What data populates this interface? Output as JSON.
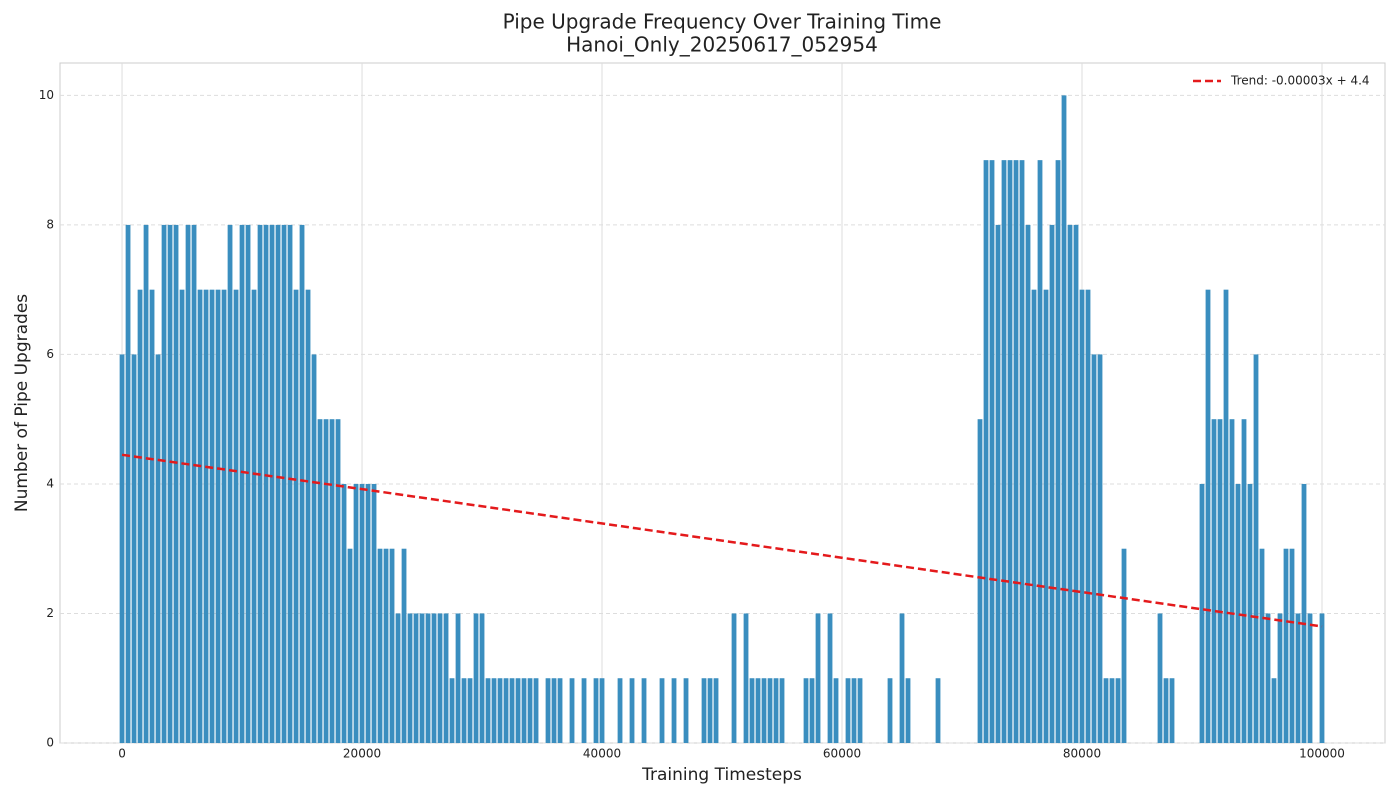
{
  "chart_data": {
    "type": "bar",
    "title": "Pipe Upgrade Frequency Over Training Time",
    "subtitle": "Hanoi_Only_20250617_052954",
    "x_label": "Training Timesteps",
    "y_label": "Number of Pipe Upgrades",
    "color": "#3a8ebf",
    "x": [
      0,
      500,
      1000,
      1500,
      2000,
      2500,
      3000,
      3500,
      4000,
      4500,
      5000,
      5500,
      6000,
      6500,
      7000,
      7500,
      8000,
      8500,
      9000,
      9500,
      10000,
      10500,
      11000,
      11500,
      12000,
      12500,
      13000,
      13500,
      14000,
      14500,
      15000,
      15500,
      16000,
      16500,
      17000,
      17500,
      18000,
      18500,
      19000,
      19500,
      20000,
      20500,
      21000,
      21500,
      22000,
      22500,
      23000,
      23500,
      24000,
      24500,
      25000,
      25500,
      26000,
      26500,
      27000,
      27500,
      28000,
      28500,
      29000,
      29500,
      30000,
      30500,
      31000,
      31500,
      32000,
      32500,
      33000,
      33500,
      34000,
      34500,
      35000,
      35500,
      36000,
      36500,
      37000,
      37500,
      38000,
      38500,
      39000,
      39500,
      40000,
      40500,
      41000,
      41500,
      42000,
      42500,
      43000,
      43500,
      44000,
      44500,
      45000,
      45500,
      46000,
      46500,
      47000,
      47500,
      48000,
      48500,
      49000,
      49500,
      50000,
      50500,
      51000,
      51500,
      52000,
      52500,
      53000,
      53500,
      54000,
      54500,
      55000,
      55500,
      56000,
      56500,
      57000,
      57500,
      58000,
      58500,
      59000,
      59500,
      60000,
      60500,
      61000,
      61500,
      62000,
      62500,
      63000,
      63500,
      64000,
      64500,
      65000,
      65500,
      66000,
      66500,
      67000,
      67500,
      68000,
      68500,
      69000,
      69500,
      70000,
      70500,
      71000,
      71500,
      72000,
      72500,
      73000,
      73500,
      74000,
      74500,
      75000,
      75500,
      76000,
      76500,
      77000,
      77500,
      78000,
      78500,
      79000,
      79500,
      80000,
      80500,
      81000,
      81500,
      82000,
      82500,
      83000,
      83500,
      84000,
      84500,
      85000,
      85500,
      86000,
      86500,
      87000,
      87500,
      88000,
      88500,
      89000,
      89500,
      90000,
      90500,
      91000,
      91500,
      92000,
      92500,
      93000,
      93500,
      94000,
      94500,
      95000,
      95500,
      96000,
      96500,
      97000,
      97500,
      98000,
      98500,
      99000,
      99500,
      100000
    ],
    "values": [
      6,
      8,
      6,
      7,
      8,
      7,
      6,
      8,
      8,
      8,
      7,
      8,
      8,
      7,
      7,
      7,
      7,
      7,
      8,
      7,
      8,
      8,
      7,
      8,
      8,
      8,
      8,
      8,
      8,
      7,
      8,
      7,
      6,
      5,
      5,
      5,
      5,
      4,
      3,
      4,
      4,
      4,
      4,
      3,
      3,
      3,
      2,
      3,
      2,
      2,
      2,
      2,
      2,
      2,
      2,
      1,
      2,
      1,
      1,
      2,
      2,
      1,
      1,
      1,
      1,
      1,
      1,
      1,
      1,
      1,
      0,
      1,
      1,
      1,
      0,
      1,
      0,
      1,
      0,
      1,
      1,
      0,
      0,
      1,
      0,
      1,
      0,
      1,
      0,
      0,
      1,
      0,
      1,
      0,
      1,
      0,
      0,
      1,
      1,
      1,
      0,
      0,
      2,
      0,
      2,
      1,
      1,
      1,
      1,
      1,
      1,
      0,
      0,
      0,
      1,
      1,
      2,
      0,
      2,
      1,
      0,
      1,
      1,
      1,
      0,
      0,
      0,
      0,
      1,
      0,
      2,
      1,
      0,
      0,
      0,
      0,
      1,
      0,
      0,
      0,
      0,
      0,
      0,
      5,
      9,
      9,
      8,
      9,
      9,
      9,
      9,
      8,
      7,
      9,
      7,
      8,
      9,
      10,
      8,
      8,
      7,
      7,
      6,
      6,
      1,
      1,
      1,
      3,
      0,
      0,
      0,
      0,
      0,
      2,
      1,
      1,
      0,
      0,
      0,
      0,
      4,
      7,
      5,
      5,
      7,
      5,
      4,
      5,
      4,
      6,
      3,
      2,
      1,
      2,
      3,
      3,
      2,
      4,
      2,
      0,
      2
    ],
    "bar_width": 400,
    "trend": {
      "name": "Trend: -0.00003x + 4.4",
      "color": "#e41a1c",
      "x": [
        0,
        100000
      ],
      "values": [
        4.45,
        1.8
      ]
    },
    "xlim": [
      -5170,
      105250
    ],
    "ylim": [
      0,
      10.5
    ],
    "xticks": [
      0,
      20000,
      40000,
      60000,
      80000,
      100000
    ],
    "yticks": [
      0,
      2,
      4,
      6,
      8,
      10
    ],
    "grid": true,
    "legend": "upper right"
  }
}
